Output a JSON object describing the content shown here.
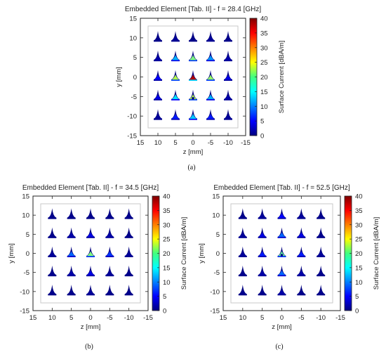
{
  "colorbar": {
    "label": "Surface Current [dBA/m]",
    "ticks": [
      0,
      5,
      10,
      15,
      20,
      25,
      30,
      35,
      40
    ],
    "range": [
      0,
      40
    ],
    "colormap": "jet"
  },
  "chart_data": [
    {
      "type": "heatmap",
      "caption": "(a)",
      "title": "Embedded Element [Tab. II] - f = 28.4 [GHz]",
      "xlabel": "z [mm]",
      "ylabel": "y [mm]",
      "xticks": [
        15,
        10,
        5,
        0,
        -5,
        -10,
        -15
      ],
      "yticks": [
        15,
        10,
        5,
        0,
        -5,
        -10,
        -15
      ],
      "xlim": [
        15,
        -15
      ],
      "ylim": [
        -15,
        15
      ],
      "grid_positions": [
        10,
        5,
        0,
        -5,
        -10
      ],
      "element_levels": [
        [
          1,
          2,
          1,
          2,
          1
        ],
        [
          3,
          12,
          20,
          11,
          3
        ],
        [
          5,
          22,
          38,
          21,
          4
        ],
        [
          4,
          14,
          22,
          12,
          3
        ],
        [
          2,
          6,
          13,
          6,
          2
        ]
      ]
    },
    {
      "type": "heatmap",
      "caption": "(b)",
      "title": "Embedded Element [Tab. II] - f = 34.5 [GHz]",
      "xlabel": "z [mm]",
      "ylabel": "y [mm]",
      "xticks": [
        15,
        10,
        5,
        0,
        -5,
        -10,
        -15
      ],
      "yticks": [
        15,
        10,
        5,
        0,
        -5,
        -10,
        -15
      ],
      "xlim": [
        15,
        -15
      ],
      "ylim": [
        -15,
        15
      ],
      "grid_positions": [
        10,
        5,
        0,
        -5,
        -10
      ],
      "element_levels": [
        [
          1,
          1,
          1,
          1,
          1
        ],
        [
          1,
          3,
          4,
          3,
          1
        ],
        [
          2,
          9,
          20,
          7,
          2
        ],
        [
          1,
          3,
          4,
          2,
          1
        ],
        [
          1,
          1,
          2,
          1,
          1
        ]
      ]
    },
    {
      "type": "heatmap",
      "caption": "(c)",
      "title": "Embedded Element [Tab. II] - f = 52.5 [GHz]",
      "xlabel": "z [mm]",
      "ylabel": "y [mm]",
      "xticks": [
        15,
        10,
        5,
        0,
        -5,
        -10,
        -15
      ],
      "yticks": [
        15,
        10,
        5,
        0,
        -5,
        -10,
        -15
      ],
      "xlim": [
        15,
        -15
      ],
      "ylim": [
        -15,
        15
      ],
      "grid_positions": [
        10,
        5,
        0,
        -5,
        -10
      ],
      "element_levels": [
        [
          1,
          2,
          5,
          2,
          1
        ],
        [
          2,
          4,
          9,
          4,
          1
        ],
        [
          2,
          6,
          19,
          6,
          2
        ],
        [
          1,
          3,
          9,
          3,
          1
        ],
        [
          1,
          1,
          3,
          1,
          1
        ]
      ]
    }
  ]
}
